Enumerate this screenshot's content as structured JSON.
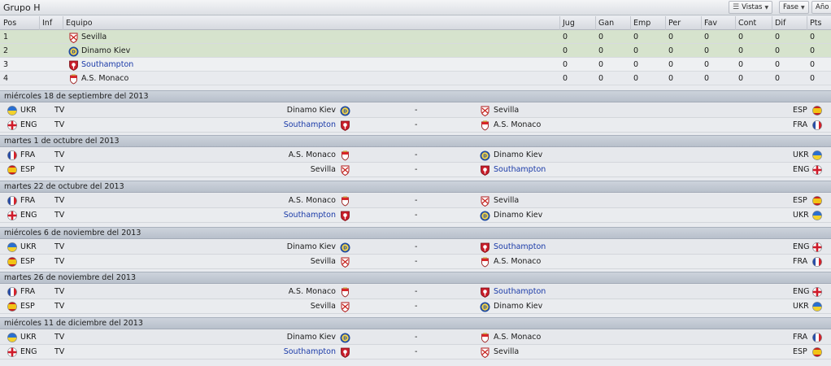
{
  "toolbar": {
    "title": "Grupo H",
    "views_label": "Vistas",
    "phase_label": "Fase",
    "year_label": "Año"
  },
  "standings": {
    "headers": {
      "pos": "Pos",
      "inf": "Inf",
      "team": "Equipo",
      "played": "Jug",
      "won": "Gan",
      "drawn": "Emp",
      "lost": "Per",
      "for": "Fav",
      "against": "Cont",
      "diff": "Dif",
      "points": "Pts"
    },
    "rows": [
      {
        "pos": "1",
        "team": "Sevilla",
        "badge": "sevilla",
        "played": "0",
        "won": "0",
        "drawn": "0",
        "lost": "0",
        "for": "0",
        "against": "0",
        "diff": "0",
        "points": "0"
      },
      {
        "pos": "2",
        "team": "Dinamo Kiev",
        "badge": "dinamo",
        "played": "0",
        "won": "0",
        "drawn": "0",
        "lost": "0",
        "for": "0",
        "against": "0",
        "diff": "0",
        "points": "0"
      },
      {
        "pos": "3",
        "team": "Southampton",
        "badge": "southampton",
        "played": "0",
        "won": "0",
        "drawn": "0",
        "lost": "0",
        "for": "0",
        "against": "0",
        "diff": "0",
        "points": "0"
      },
      {
        "pos": "4",
        "team": "A.S. Monaco",
        "badge": "monaco",
        "played": "0",
        "won": "0",
        "drawn": "0",
        "lost": "0",
        "for": "0",
        "against": "0",
        "diff": "0",
        "points": "0"
      }
    ]
  },
  "fixture_days": [
    {
      "date": "miércoles 18 de septiembre del 2013",
      "matches": [
        {
          "home_nation": "UKR",
          "home_flag": "ukr",
          "tv": "TV",
          "home": "Dinamo Kiev",
          "home_badge": "dinamo",
          "score": "-",
          "away": "Sevilla",
          "away_badge": "sevilla",
          "away_nation": "ESP",
          "away_flag": "esp"
        },
        {
          "home_nation": "ENG",
          "home_flag": "eng",
          "tv": "TV",
          "home": "Southampton",
          "home_badge": "southampton",
          "score": "-",
          "away": "A.S. Monaco",
          "away_badge": "monaco",
          "away_nation": "FRA",
          "away_flag": "fra"
        }
      ]
    },
    {
      "date": "martes 1 de octubre del 2013",
      "matches": [
        {
          "home_nation": "FRA",
          "home_flag": "fra",
          "tv": "TV",
          "home": "A.S. Monaco",
          "home_badge": "monaco",
          "score": "-",
          "away": "Dinamo Kiev",
          "away_badge": "dinamo",
          "away_nation": "UKR",
          "away_flag": "ukr"
        },
        {
          "home_nation": "ESP",
          "home_flag": "esp",
          "tv": "TV",
          "home": "Sevilla",
          "home_badge": "sevilla",
          "score": "-",
          "away": "Southampton",
          "away_badge": "southampton",
          "away_nation": "ENG",
          "away_flag": "eng"
        }
      ]
    },
    {
      "date": "martes 22 de octubre del 2013",
      "matches": [
        {
          "home_nation": "FRA",
          "home_flag": "fra",
          "tv": "TV",
          "home": "A.S. Monaco",
          "home_badge": "monaco",
          "score": "-",
          "away": "Sevilla",
          "away_badge": "sevilla",
          "away_nation": "ESP",
          "away_flag": "esp"
        },
        {
          "home_nation": "ENG",
          "home_flag": "eng",
          "tv": "TV",
          "home": "Southampton",
          "home_badge": "southampton",
          "score": "-",
          "away": "Dinamo Kiev",
          "away_badge": "dinamo",
          "away_nation": "UKR",
          "away_flag": "ukr"
        }
      ]
    },
    {
      "date": "miércoles 6 de noviembre del 2013",
      "matches": [
        {
          "home_nation": "UKR",
          "home_flag": "ukr",
          "tv": "TV",
          "home": "Dinamo Kiev",
          "home_badge": "dinamo",
          "score": "-",
          "away": "Southampton",
          "away_badge": "southampton",
          "away_nation": "ENG",
          "away_flag": "eng"
        },
        {
          "home_nation": "ESP",
          "home_flag": "esp",
          "tv": "TV",
          "home": "Sevilla",
          "home_badge": "sevilla",
          "score": "-",
          "away": "A.S. Monaco",
          "away_badge": "monaco",
          "away_nation": "FRA",
          "away_flag": "fra"
        }
      ]
    },
    {
      "date": "martes 26 de noviembre del 2013",
      "matches": [
        {
          "home_nation": "FRA",
          "home_flag": "fra",
          "tv": "TV",
          "home": "A.S. Monaco",
          "home_badge": "monaco",
          "score": "-",
          "away": "Southampton",
          "away_badge": "southampton",
          "away_nation": "ENG",
          "away_flag": "eng"
        },
        {
          "home_nation": "ESP",
          "home_flag": "esp",
          "tv": "TV",
          "home": "Sevilla",
          "home_badge": "sevilla",
          "score": "-",
          "away": "Dinamo Kiev",
          "away_badge": "dinamo",
          "away_nation": "UKR",
          "away_flag": "ukr"
        }
      ]
    },
    {
      "date": "miércoles 11 de diciembre del 2013",
      "matches": [
        {
          "home_nation": "UKR",
          "home_flag": "ukr",
          "tv": "TV",
          "home": "Dinamo Kiev",
          "home_badge": "dinamo",
          "score": "-",
          "away": "A.S. Monaco",
          "away_badge": "monaco",
          "away_nation": "FRA",
          "away_flag": "fra"
        },
        {
          "home_nation": "ENG",
          "home_flag": "eng",
          "tv": "TV",
          "home": "Southampton",
          "home_badge": "southampton",
          "score": "-",
          "away": "Sevilla",
          "away_badge": "sevilla",
          "away_nation": "ESP",
          "away_flag": "esp"
        }
      ]
    }
  ],
  "colors": {
    "link": "#1a3aa8",
    "qualified_row": "#d6e3cd",
    "date_header": "#c3cad4"
  }
}
